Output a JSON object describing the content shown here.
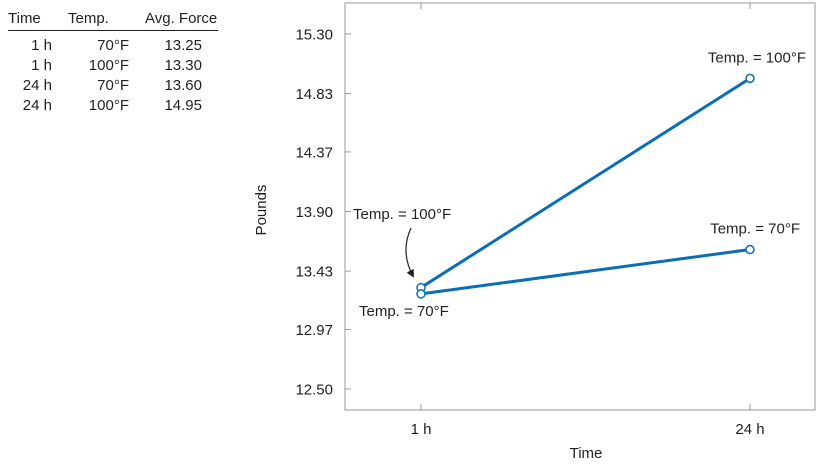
{
  "table": {
    "headers": [
      "Time",
      "Temp.",
      "Avg. Force"
    ],
    "rows": [
      [
        "1 h",
        "70°F",
        "13.25"
      ],
      [
        "1 h",
        "100°F",
        "13.30"
      ],
      [
        "24 h",
        "70°F",
        "13.60"
      ],
      [
        "24 h",
        "100°F",
        "14.95"
      ]
    ]
  },
  "chart_data": {
    "type": "line",
    "xlabel": "Time",
    "ylabel": "Pounds",
    "categories": [
      "1 h",
      "24 h"
    ],
    "ylim": [
      12.5,
      15.3
    ],
    "yticks": [
      12.5,
      12.97,
      13.43,
      13.9,
      14.37,
      14.83,
      15.3
    ],
    "ytick_labels": [
      "12.50",
      "12.97",
      "13.43",
      "13.90",
      "14.37",
      "14.83",
      "15.30"
    ],
    "series": [
      {
        "name": "Temp. = 100°F",
        "values": [
          13.3,
          14.95
        ]
      },
      {
        "name": "Temp. = 70°F",
        "values": [
          13.25,
          13.6
        ]
      }
    ],
    "grid": false,
    "line_color": "#0a6eb4"
  }
}
